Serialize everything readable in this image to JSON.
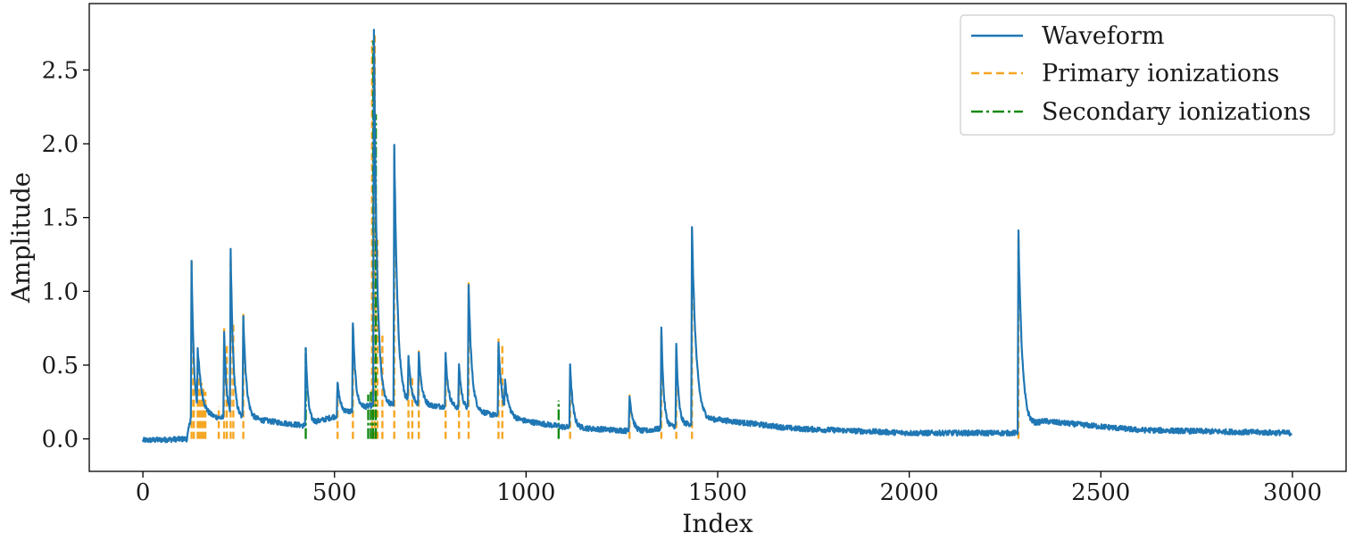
{
  "chart_data": {
    "type": "line",
    "title": "",
    "xlabel": "Index",
    "ylabel": "Amplitude",
    "xlim": [
      -140,
      3140
    ],
    "ylim": [
      -0.22,
      2.95
    ],
    "xticks": [
      0,
      500,
      1000,
      1500,
      2000,
      2500,
      3000
    ],
    "xtick_labels": [
      "0",
      "500",
      "1000",
      "1500",
      "2000",
      "2500",
      "3000"
    ],
    "yticks": [
      0.0,
      0.5,
      1.0,
      1.5,
      2.0,
      2.5
    ],
    "ytick_labels": [
      "0.0",
      "0.5",
      "1.0",
      "1.5",
      "2.0",
      "2.5"
    ],
    "grid": false,
    "legend_position": "top-right",
    "n_points": 3000,
    "noise_amplitude": 0.018,
    "baseline": [
      {
        "x": 0,
        "y": -0.01
      },
      {
        "x": 115,
        "y": 0.0
      },
      {
        "x": 125,
        "y": 0.15
      },
      {
        "x": 300,
        "y": 0.13
      },
      {
        "x": 420,
        "y": 0.09
      },
      {
        "x": 600,
        "y": 0.23
      },
      {
        "x": 800,
        "y": 0.22
      },
      {
        "x": 1000,
        "y": 0.12
      },
      {
        "x": 1100,
        "y": 0.08
      },
      {
        "x": 1300,
        "y": 0.05
      },
      {
        "x": 1500,
        "y": 0.13
      },
      {
        "x": 1700,
        "y": 0.07
      },
      {
        "x": 2000,
        "y": 0.04
      },
      {
        "x": 2280,
        "y": 0.04
      },
      {
        "x": 2350,
        "y": 0.12
      },
      {
        "x": 2600,
        "y": 0.06
      },
      {
        "x": 3000,
        "y": 0.04
      }
    ],
    "pulses": [
      {
        "x": 127,
        "height": 1.05,
        "decay": 6
      },
      {
        "x": 143,
        "height": 0.4,
        "decay": 12
      },
      {
        "x": 212,
        "height": 0.6,
        "decay": 6
      },
      {
        "x": 229,
        "height": 1.1,
        "decay": 7
      },
      {
        "x": 262,
        "height": 0.7,
        "decay": 8
      },
      {
        "x": 425,
        "height": 0.52,
        "decay": 6
      },
      {
        "x": 508,
        "height": 0.22,
        "decay": 8
      },
      {
        "x": 548,
        "height": 0.6,
        "decay": 7
      },
      {
        "x": 603,
        "height": 2.55,
        "decay": 8
      },
      {
        "x": 656,
        "height": 1.75,
        "decay": 9
      },
      {
        "x": 693,
        "height": 0.3,
        "decay": 8
      },
      {
        "x": 720,
        "height": 0.35,
        "decay": 8
      },
      {
        "x": 790,
        "height": 0.35,
        "decay": 7
      },
      {
        "x": 825,
        "height": 0.3,
        "decay": 7
      },
      {
        "x": 850,
        "height": 0.85,
        "decay": 8
      },
      {
        "x": 928,
        "height": 0.5,
        "decay": 8
      },
      {
        "x": 945,
        "height": 0.2,
        "decay": 10
      },
      {
        "x": 1115,
        "height": 0.43,
        "decay": 7
      },
      {
        "x": 1270,
        "height": 0.25,
        "decay": 8
      },
      {
        "x": 1353,
        "height": 0.7,
        "decay": 6
      },
      {
        "x": 1392,
        "height": 0.55,
        "decay": 6
      },
      {
        "x": 1433,
        "height": 1.32,
        "decay": 11
      },
      {
        "x": 2285,
        "height": 1.35,
        "decay": 10
      }
    ],
    "series": [
      {
        "name": "Waveform",
        "color": "#1f77b4",
        "style": "solid"
      },
      {
        "name": "Primary ionizations",
        "color": "#f5a623",
        "style": "dashed",
        "events": [
          {
            "x": 127,
            "y": 1.21
          },
          {
            "x": 133,
            "y": 0.55
          },
          {
            "x": 143,
            "y": 0.45
          },
          {
            "x": 148,
            "y": 0.42
          },
          {
            "x": 153,
            "y": 0.38
          },
          {
            "x": 158,
            "y": 0.36
          },
          {
            "x": 163,
            "y": 0.32
          },
          {
            "x": 198,
            "y": 0.22
          },
          {
            "x": 212,
            "y": 0.75
          },
          {
            "x": 219,
            "y": 0.65
          },
          {
            "x": 229,
            "y": 1.22
          },
          {
            "x": 236,
            "y": 0.8
          },
          {
            "x": 262,
            "y": 0.85
          },
          {
            "x": 508,
            "y": 0.37
          },
          {
            "x": 548,
            "y": 0.76
          },
          {
            "x": 598,
            "y": 2.7
          },
          {
            "x": 605,
            "y": 2.75
          },
          {
            "x": 612,
            "y": 1.35
          },
          {
            "x": 625,
            "y": 0.7
          },
          {
            "x": 656,
            "y": 1.98
          },
          {
            "x": 693,
            "y": 0.53
          },
          {
            "x": 703,
            "y": 0.42
          },
          {
            "x": 720,
            "y": 0.6
          },
          {
            "x": 790,
            "y": 0.55
          },
          {
            "x": 825,
            "y": 0.48
          },
          {
            "x": 850,
            "y": 1.06
          },
          {
            "x": 928,
            "y": 0.68
          },
          {
            "x": 938,
            "y": 0.65
          },
          {
            "x": 1115,
            "y": 0.5
          },
          {
            "x": 1270,
            "y": 0.3
          },
          {
            "x": 1353,
            "y": 0.72
          },
          {
            "x": 1392,
            "y": 0.6
          },
          {
            "x": 1433,
            "y": 1.43
          },
          {
            "x": 2285,
            "y": 1.38
          }
        ]
      },
      {
        "name": "Secondary ionizations",
        "color": "#138a13",
        "style": "dashdot",
        "events": [
          {
            "x": 425,
            "y": 0.62
          },
          {
            "x": 588,
            "y": 0.3
          },
          {
            "x": 595,
            "y": 0.32
          },
          {
            "x": 601,
            "y": 2.7
          },
          {
            "x": 608,
            "y": 2.2
          },
          {
            "x": 1085,
            "y": 0.26
          }
        ]
      }
    ]
  }
}
